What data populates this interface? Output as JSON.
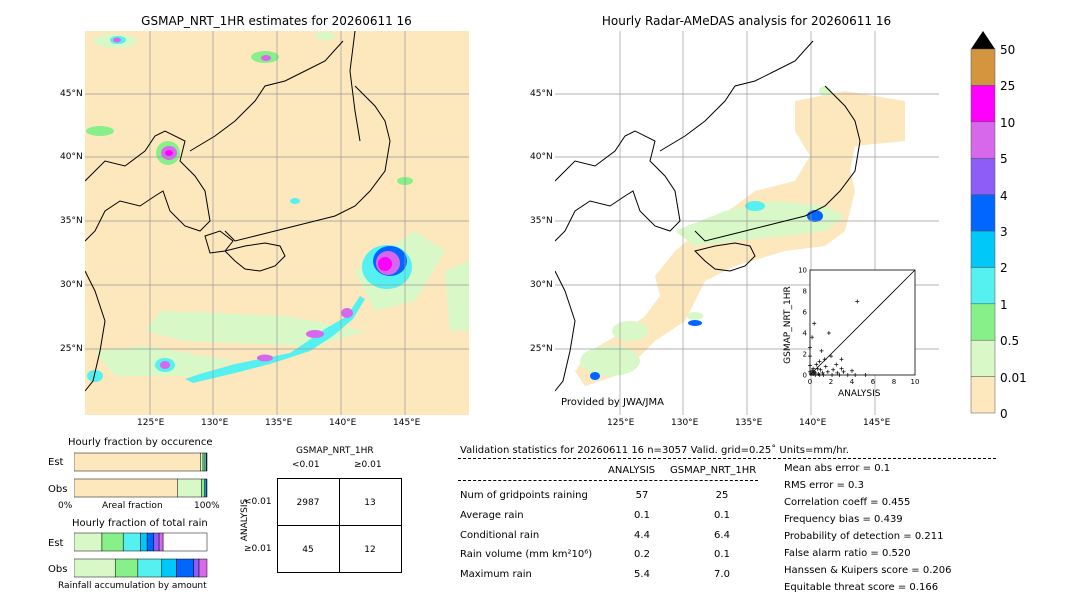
{
  "colors": {
    "land_dry": "#fde8bd",
    "sea": "#ffffff",
    "bins": [
      "#fde8bd",
      "#d8f8c8",
      "#88f088",
      "#55f0f0",
      "#00c8f8",
      "#0066ff",
      "#8e5cf7",
      "#d768ec",
      "#ff00ff",
      "#d4953f",
      "#000000"
    ]
  },
  "map_left": {
    "title": "GSMAP_NRT_1HR estimates for 20260611 16"
  },
  "map_right": {
    "title": "Hourly Radar-AMeDAS analysis for 20260611 16",
    "credit": "Provided by JWA/JMA"
  },
  "lat_ticks": [
    "45°N",
    "40°N",
    "35°N",
    "30°N",
    "25°N"
  ],
  "lon_ticks": [
    "125°E",
    "130°E",
    "135°E",
    "140°E",
    "145°E"
  ],
  "colorbar": {
    "labels": [
      "50",
      "25",
      "10",
      "5",
      "4",
      "3",
      "2",
      "1",
      "0.5",
      "0.01",
      "0"
    ]
  },
  "fraction_occurrence": {
    "title": "Hourly fraction by occurence",
    "rows": [
      "Est",
      "Obs"
    ],
    "axis_left": "0%",
    "axis_mid": "Areal fraction",
    "axis_right": "100%"
  },
  "fraction_total": {
    "title": "Hourly fraction of total rain",
    "rows": [
      "Est",
      "Obs"
    ],
    "footer": "Rainfall accumulation by amount"
  },
  "contingency": {
    "header": "GSMAP_NRT_1HR",
    "col_labels": [
      "<0.01",
      "≥0.01"
    ],
    "row_axis": "ANALYSIS",
    "row_labels": [
      "<0.01",
      "≥0.01"
    ],
    "cells": [
      [
        "2987",
        "13"
      ],
      [
        "45",
        "12"
      ]
    ]
  },
  "validation": {
    "header": "Validation statistics for 20260611 16  n=3057 Valid. grid=0.25˚ Units=mm/hr.",
    "col_analysis": "ANALYSIS",
    "col_gsmap": "GSMAP_NRT_1HR",
    "rows": [
      {
        "label": "Num of gridpoints raining",
        "a": "57",
        "g": "25"
      },
      {
        "label": "Average rain",
        "a": "0.1",
        "g": "0.1"
      },
      {
        "label": "Conditional rain",
        "a": "4.4",
        "g": "6.4"
      },
      {
        "label": "Rain volume (mm km²10⁶)",
        "a": "0.2",
        "g": "0.1"
      },
      {
        "label": "Maximum rain",
        "a": "5.4",
        "g": "7.0"
      }
    ],
    "scores": [
      "Mean abs error =    0.1",
      "RMS error =    0.3",
      "Correlation coeff =  0.455",
      "Frequency bias =  0.439",
      "Probability of detection =  0.211",
      "False alarm ratio =  0.520",
      "Hanssen & Kuipers score =  0.206",
      "Equitable threat score =  0.166"
    ]
  },
  "chart_data": [
    {
      "type": "scatter",
      "xlabel": "ANALYSIS",
      "ylabel": "GSMAP_NRT_1HR",
      "xlim": [
        0,
        10
      ],
      "ylim": [
        0,
        10
      ],
      "ticks": [
        "0",
        "2",
        "4",
        "6",
        "8",
        "10"
      ],
      "points": [
        [
          4.0,
          0.4
        ],
        [
          3.2,
          0.3
        ],
        [
          3.0,
          1.5
        ],
        [
          2.5,
          1.0
        ],
        [
          2.2,
          0.5
        ],
        [
          2.0,
          1.8
        ],
        [
          1.8,
          4.0
        ],
        [
          1.5,
          0.8
        ],
        [
          1.4,
          1.5
        ],
        [
          1.2,
          0.2
        ],
        [
          1.1,
          2.3
        ],
        [
          1.0,
          0.5
        ],
        [
          0.9,
          1.3
        ],
        [
          0.8,
          0.1
        ],
        [
          0.7,
          0.6
        ],
        [
          0.6,
          1.0
        ],
        [
          0.5,
          0.2
        ],
        [
          0.4,
          0.3
        ],
        [
          0.3,
          0.1
        ],
        [
          0.2,
          0.4
        ],
        [
          0.1,
          0.1
        ],
        [
          0.5,
          0.0
        ],
        [
          1.3,
          0.0
        ],
        [
          2.1,
          0.0
        ],
        [
          2.8,
          0.0
        ],
        [
          3.6,
          0.0
        ],
        [
          4.3,
          0.0
        ],
        [
          5.3,
          0.0
        ],
        [
          0.0,
          0.9
        ],
        [
          0.0,
          1.8
        ],
        [
          0.0,
          2.6
        ],
        [
          0.0,
          0.3
        ],
        [
          4.5,
          7.0
        ],
        [
          0.4,
          4.9
        ],
        [
          0.2,
          3.6
        ],
        [
          3.0,
          0.6
        ],
        [
          1.7,
          0.3
        ],
        [
          0.9,
          0.0
        ],
        [
          0.3,
          0.6
        ],
        [
          2.6,
          0.2
        ]
      ]
    },
    {
      "type": "bar",
      "title": "Hourly fraction by occurence",
      "series": [
        {
          "name": "Est",
          "values": [
            0.95,
            0.02,
            0.015,
            0.01,
            0.005
          ]
        },
        {
          "name": "Obs",
          "values": [
            0.78,
            0.18,
            0.02,
            0.012,
            0.008
          ]
        }
      ]
    },
    {
      "type": "bar",
      "title": "Hourly fraction of total rain",
      "series": [
        {
          "name": "Est",
          "values": [
            0.21,
            0.16,
            0.13,
            0.05,
            0.05,
            0.04,
            0.03,
            0.33
          ]
        },
        {
          "name": "Obs",
          "values": [
            0.31,
            0.17,
            0.18,
            0.11,
            0.13,
            0.04,
            0.06
          ]
        }
      ]
    }
  ]
}
